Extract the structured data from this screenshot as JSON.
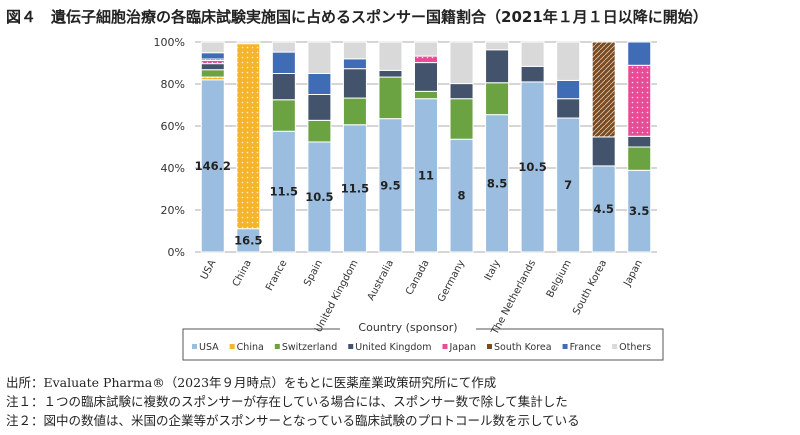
{
  "title": "図４　遺伝子細胞治療の各臨床試験実施国に占めるスポンサー国籍割合（2021年１月１日以降に開始）",
  "chart_data": {
    "type": "bar",
    "stacked": true,
    "title": "図４　遺伝子細胞治療の各臨床試験実施国に占めるスポンサー国籍割合（2021年１月１日以降に開始）",
    "xlabel": "",
    "ylabel": "",
    "ylim": [
      0,
      100
    ],
    "yticks": [
      "0%",
      "20%",
      "40%",
      "60%",
      "80%",
      "100%"
    ],
    "grid": true,
    "legend_title": "Country (sponsor)",
    "legend_position": "bottom",
    "categories": [
      "USA",
      "China",
      "France",
      "Spain",
      "United Kingdom",
      "Australia",
      "Canada",
      "Germany",
      "Italy",
      "The Netherlands",
      "Belgium",
      "South Korea",
      "Japan"
    ],
    "data_labels": [
      "146.2",
      "16.5",
      "11.5",
      "10.5",
      "11.5",
      "9.5",
      "11",
      "8",
      "8.5",
      "10.5",
      "7",
      "4.5",
      "3.5"
    ],
    "series": [
      {
        "name": "USA",
        "color": "#9bbde0",
        "values": [
          82,
          11.1,
          57.5,
          52.4,
          60.6,
          63.5,
          73,
          53.7,
          65.4,
          81,
          63.8,
          41,
          38.9
        ]
      },
      {
        "name": "China",
        "color": "#f5b52a",
        "pattern": "dots",
        "values": [
          1.3,
          88.1,
          0,
          0,
          0,
          0,
          0,
          0,
          0,
          0,
          0,
          0,
          0
        ]
      },
      {
        "name": "Switzerland",
        "color": "#6ca342",
        "values": [
          3.5,
          0,
          15,
          10.3,
          12.7,
          19.8,
          3.5,
          19.3,
          15.2,
          0,
          0,
          0,
          11.1
        ]
      },
      {
        "name": "United Kingdom",
        "color": "#43536b",
        "values": [
          2.9,
          0,
          12.5,
          12.3,
          14,
          3.2,
          13.7,
          7.2,
          15.7,
          7.4,
          9.2,
          13.8,
          5.1
        ]
      },
      {
        "name": "Japan",
        "color": "#e84c97",
        "pattern": "dots",
        "values": [
          1.5,
          0,
          0,
          0,
          0,
          0,
          3.1,
          0,
          0,
          0,
          0,
          0,
          33.8
        ]
      },
      {
        "name": "South Korea",
        "color": "#7b4a1e",
        "pattern": "hatch",
        "values": [
          0.7,
          0,
          0,
          0,
          0,
          0,
          0,
          0,
          0,
          0,
          0,
          45.2,
          0
        ]
      },
      {
        "name": "France",
        "color": "#3f6cb5",
        "values": [
          3,
          0,
          10.2,
          10,
          4.7,
          0,
          0,
          0,
          0,
          0,
          8.7,
          0,
          11.1
        ]
      },
      {
        "name": "Others",
        "color": "#d9d9d9",
        "values": [
          5.1,
          0.8,
          4.8,
          15,
          8,
          13.5,
          6.7,
          19.8,
          3.7,
          11.6,
          18.3,
          0,
          0
        ]
      }
    ]
  },
  "notes": [
    "出所：Evaluate Pharma®（2023年９月時点）をもとに医薬産業政策研究所にて作成",
    "注１：１つの臨床試験に複数のスポンサーが存在している場合には、スポンサー数で除して集計した",
    "注２：図中の数値は、米国の企業等がスポンサーとなっている臨床試験のプロトコール数を示している"
  ]
}
